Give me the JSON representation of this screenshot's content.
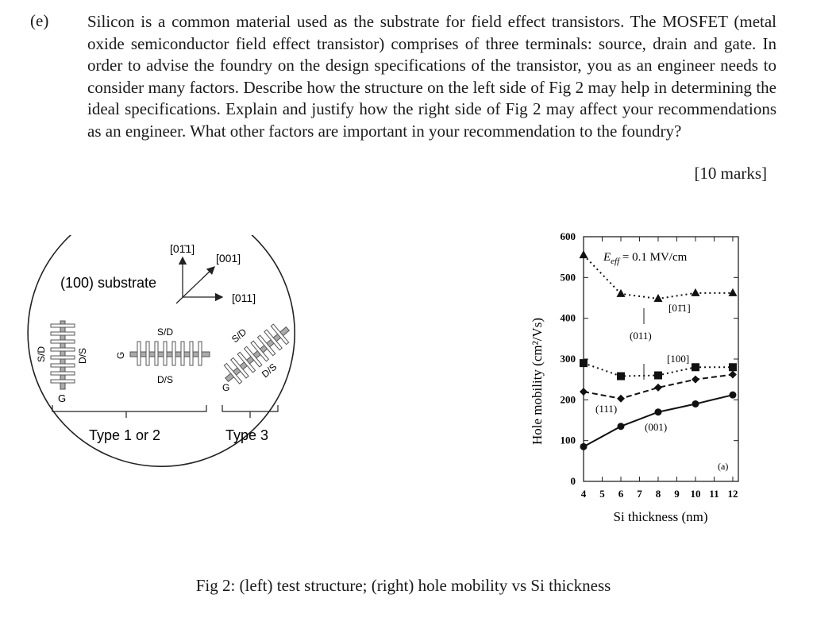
{
  "question": {
    "label": "(e)",
    "text": "Silicon is a common material used as the substrate for field effect transistors. The MOSFET (metal oxide semiconductor field effect transistor) comprises of three terminals:  source, drain and gate. In order to advise the foundry on the design specifications of the transistor, you as an engineer needs to consider many factors. Describe how the structure on the left side of Fig 2 may help in determining the ideal specifications. Explain and justify how the right side of Fig 2 may affect your recommendations as an engineer. What other factors are important in your recommendation to the foundry?",
    "marks": "[10 marks]"
  },
  "left_figure": {
    "substrate_label": "(100) substrate",
    "axis_up": "[01̄1]",
    "axis_diag": "[001]",
    "axis_right": "[011]",
    "sd": "S/D",
    "ds": "D/S",
    "g": "G",
    "type12": "Type 1 or 2",
    "type3": "Type 3"
  },
  "caption": "Fig 2: (left) test structure; (right) hole mobility vs Si thickness",
  "chart_data": {
    "type": "line",
    "title": "",
    "annotation": "E_eff = 0.1 MV/cm",
    "eff_prefix": "E",
    "eff_sub": "eff",
    "eff_rest": " = 0.1 MV/cm",
    "panel_label": "(a)",
    "xlabel": "Si thickness (nm)",
    "ylabel": "Hole mobility (cm²/Vs)",
    "xlim": [
      4,
      12.3
    ],
    "ylim": [
      0,
      600
    ],
    "xticks": [
      4,
      5,
      6,
      7,
      8,
      9,
      10,
      11,
      12
    ],
    "yticks": [
      0,
      100,
      200,
      300,
      400,
      500,
      600
    ],
    "series": [
      {
        "name": "(011) [01̄1]",
        "marker": "triangle",
        "style": "dotted",
        "x": [
          4,
          6,
          8,
          10,
          12
        ],
        "y": [
          555,
          460,
          448,
          462,
          462
        ]
      },
      {
        "name": "(011) [100]",
        "marker": "square",
        "style": "dotted",
        "x": [
          4,
          6,
          8,
          10,
          12
        ],
        "y": [
          290,
          258,
          260,
          280,
          280
        ]
      },
      {
        "name": "(111)",
        "marker": "diamond",
        "style": "dashed",
        "x": [
          4,
          6,
          8,
          10,
          12
        ],
        "y": [
          220,
          203,
          230,
          250,
          262
        ]
      },
      {
        "name": "(001)",
        "marker": "circle",
        "style": "solid",
        "x": [
          4,
          6,
          8,
          10,
          12
        ],
        "y": [
          85,
          135,
          170,
          190,
          212
        ]
      }
    ],
    "labels": {
      "s011_dir": "[01̄1]",
      "plane011": "(011)",
      "s100_dir": "[100]",
      "plane111": "(111)",
      "plane001": "(001)"
    }
  }
}
